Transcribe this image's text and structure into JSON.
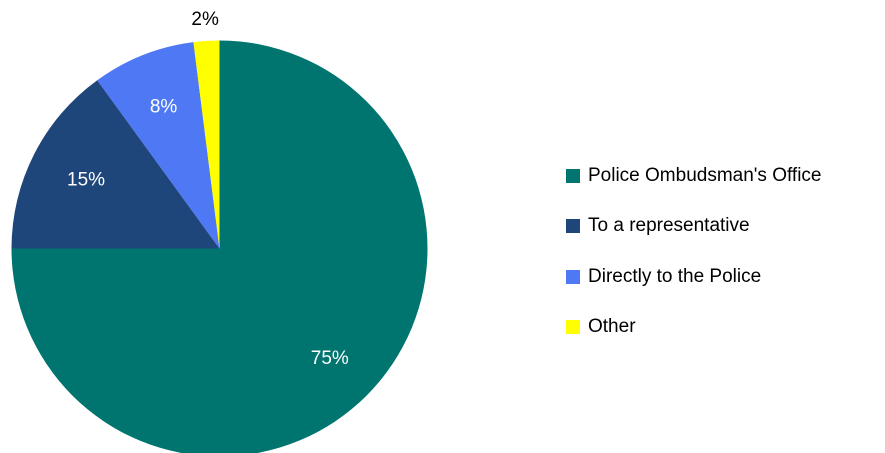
{
  "chart_data": {
    "type": "pie",
    "title": "",
    "slices": [
      {
        "label": "Police Ombudsman's Office",
        "value": 75,
        "value_label": "75%",
        "color": "#007570",
        "label_color": "#ffffff"
      },
      {
        "label": "To a representative",
        "value": 15,
        "value_label": "15%",
        "color": "#1f467a",
        "label_color": "#ffffff"
      },
      {
        "label": "Directly to the Police",
        "value": 8,
        "value_label": "8%",
        "color": "#4f78f5",
        "label_color": "#ffffff"
      },
      {
        "label": "Other",
        "value": 2,
        "value_label": "2%",
        "color": "#ffff00",
        "label_color": "#000000"
      }
    ],
    "legend_position": "right",
    "start_angle": "12 o'clock",
    "direction": "clockwise"
  }
}
